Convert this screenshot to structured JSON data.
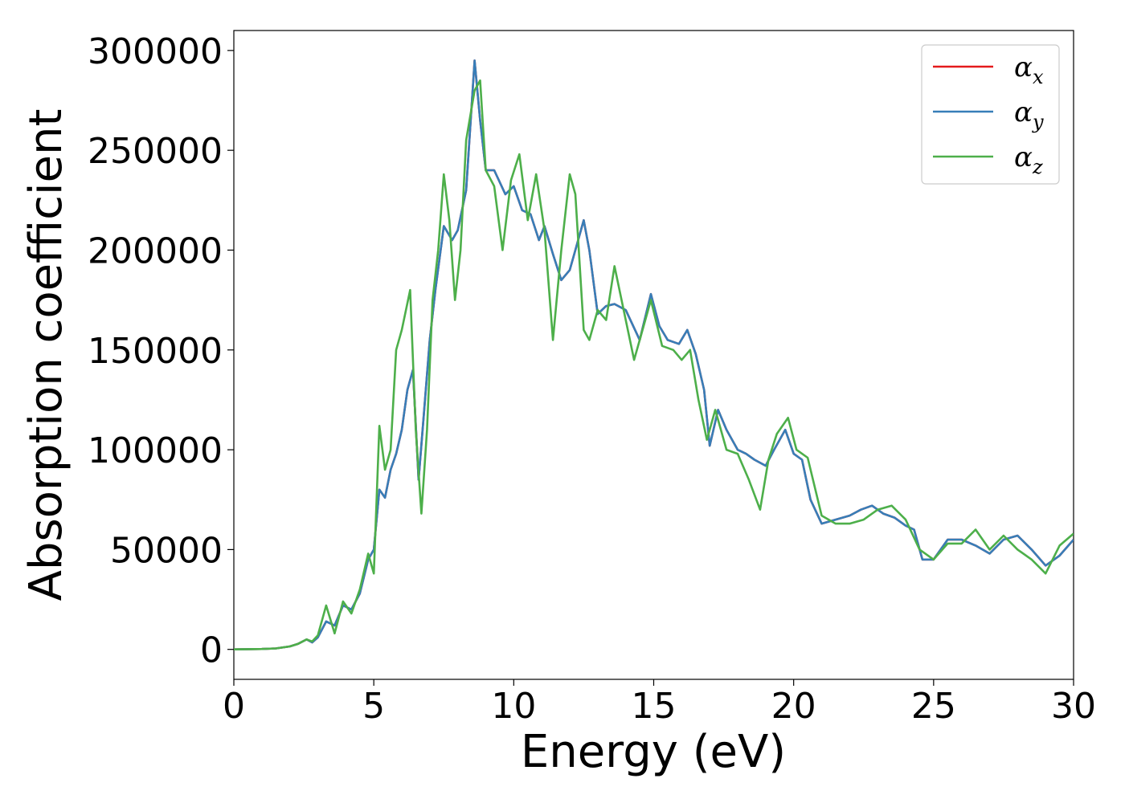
{
  "chart_data": {
    "type": "line",
    "title": "",
    "xlabel": "Energy (eV)",
    "ylabel": "Absorption coefficient",
    "xlim": [
      0,
      30
    ],
    "ylim": [
      -15000,
      310000
    ],
    "xticks": [
      0,
      5,
      10,
      15,
      20,
      25,
      30
    ],
    "yticks": [
      0,
      50000,
      100000,
      150000,
      200000,
      250000,
      300000
    ],
    "grid": false,
    "legend_position": "top-right",
    "series": [
      {
        "name": "αx",
        "symbol": "α",
        "subscript": "x",
        "color": "#e41a1c",
        "x": [
          0,
          1,
          1.5,
          2,
          2.3,
          2.6,
          2.8,
          3,
          3.3,
          3.6,
          3.9,
          4.2,
          4.5,
          4.8,
          5,
          5.2,
          5.4,
          5.6,
          5.8,
          6,
          6.2,
          6.4,
          6.6,
          6.8,
          7,
          7.2,
          7.5,
          7.8,
          8,
          8.3,
          8.6,
          8.8,
          9,
          9.3,
          9.7,
          10,
          10.3,
          10.6,
          10.9,
          11.1,
          11.4,
          11.7,
          12,
          12.2,
          12.5,
          12.7,
          13,
          13.3,
          13.6,
          14,
          14.5,
          14.9,
          15.2,
          15.5,
          15.9,
          16.2,
          16.5,
          16.8,
          17,
          17.3,
          17.6,
          18,
          18.3,
          18.6,
          19,
          19.3,
          19.7,
          20,
          20.3,
          20.6,
          21,
          21.5,
          22,
          22.4,
          22.8,
          23.2,
          23.6,
          24,
          24.3,
          24.6,
          25,
          25.5,
          26,
          26.5,
          27,
          27.5,
          28,
          28.5,
          29,
          29.5,
          30
        ],
        "y": [
          0,
          200,
          500,
          1500,
          2800,
          5000,
          3500,
          6000,
          14000,
          12000,
          22000,
          20000,
          28000,
          45000,
          50000,
          80000,
          76000,
          90000,
          98000,
          110000,
          130000,
          140000,
          85000,
          120000,
          155000,
          180000,
          212000,
          205000,
          210000,
          230000,
          295000,
          265000,
          240000,
          240000,
          228000,
          232000,
          220000,
          218000,
          205000,
          212000,
          198000,
          185000,
          190000,
          200000,
          215000,
          200000,
          168000,
          172000,
          173000,
          170000,
          155000,
          178000,
          162000,
          155000,
          153000,
          160000,
          148000,
          130000,
          102000,
          120000,
          110000,
          100000,
          98000,
          95000,
          92000,
          100000,
          110000,
          98000,
          95000,
          75000,
          63000,
          65000,
          67000,
          70000,
          72000,
          68000,
          66000,
          62000,
          60000,
          45000,
          45000,
          55000,
          55000,
          52000,
          48000,
          55000,
          57000,
          50000,
          42000,
          47000,
          55000
        ]
      },
      {
        "name": "αy",
        "symbol": "α",
        "subscript": "y",
        "color": "#377eb8",
        "x": [
          0,
          1,
          1.5,
          2,
          2.3,
          2.6,
          2.8,
          3,
          3.3,
          3.6,
          3.9,
          4.2,
          4.5,
          4.8,
          5,
          5.2,
          5.4,
          5.6,
          5.8,
          6,
          6.2,
          6.4,
          6.6,
          6.8,
          7,
          7.2,
          7.5,
          7.8,
          8,
          8.3,
          8.6,
          8.8,
          9,
          9.3,
          9.7,
          10,
          10.3,
          10.6,
          10.9,
          11.1,
          11.4,
          11.7,
          12,
          12.2,
          12.5,
          12.7,
          13,
          13.3,
          13.6,
          14,
          14.5,
          14.9,
          15.2,
          15.5,
          15.9,
          16.2,
          16.5,
          16.8,
          17,
          17.3,
          17.6,
          18,
          18.3,
          18.6,
          19,
          19.3,
          19.7,
          20,
          20.3,
          20.6,
          21,
          21.5,
          22,
          22.4,
          22.8,
          23.2,
          23.6,
          24,
          24.3,
          24.6,
          25,
          25.5,
          26,
          26.5,
          27,
          27.5,
          28,
          28.5,
          29,
          29.5,
          30
        ],
        "y": [
          0,
          200,
          500,
          1500,
          2800,
          5000,
          3500,
          6000,
          14000,
          12000,
          22000,
          20000,
          28000,
          45000,
          50000,
          80000,
          76000,
          90000,
          98000,
          110000,
          130000,
          140000,
          85000,
          120000,
          155000,
          180000,
          212000,
          205000,
          210000,
          230000,
          295000,
          265000,
          240000,
          240000,
          228000,
          232000,
          220000,
          218000,
          205000,
          212000,
          198000,
          185000,
          190000,
          200000,
          215000,
          200000,
          168000,
          172000,
          173000,
          170000,
          155000,
          178000,
          162000,
          155000,
          153000,
          160000,
          148000,
          130000,
          102000,
          120000,
          110000,
          100000,
          98000,
          95000,
          92000,
          100000,
          110000,
          98000,
          95000,
          75000,
          63000,
          65000,
          67000,
          70000,
          72000,
          68000,
          66000,
          62000,
          60000,
          45000,
          45000,
          55000,
          55000,
          52000,
          48000,
          55000,
          57000,
          50000,
          42000,
          47000,
          55000
        ]
      },
      {
        "name": "αz",
        "symbol": "α",
        "subscript": "z",
        "color": "#4daf4a",
        "x": [
          0,
          1,
          1.5,
          2,
          2.3,
          2.6,
          2.8,
          3,
          3.3,
          3.6,
          3.9,
          4.2,
          4.5,
          4.8,
          5,
          5.2,
          5.4,
          5.6,
          5.8,
          6,
          6.3,
          6.5,
          6.7,
          6.9,
          7.1,
          7.3,
          7.5,
          7.7,
          7.9,
          8.1,
          8.3,
          8.6,
          8.8,
          9,
          9.3,
          9.6,
          9.9,
          10.2,
          10.5,
          10.8,
          11.1,
          11.4,
          11.7,
          12,
          12.2,
          12.5,
          12.7,
          13,
          13.3,
          13.6,
          14,
          14.3,
          14.6,
          14.9,
          15.3,
          15.7,
          16,
          16.3,
          16.6,
          16.9,
          17.2,
          17.6,
          18,
          18.4,
          18.8,
          19.1,
          19.4,
          19.8,
          20.1,
          20.5,
          21,
          21.5,
          22,
          22.5,
          23,
          23.5,
          24,
          24.5,
          25,
          25.5,
          26,
          26.5,
          27,
          27.5,
          28,
          28.5,
          29,
          29.5,
          30
        ],
        "y": [
          0,
          200,
          500,
          1500,
          2800,
          5000,
          4000,
          7000,
          22000,
          8000,
          24000,
          18000,
          30000,
          48000,
          38000,
          112000,
          90000,
          100000,
          150000,
          160000,
          180000,
          110000,
          68000,
          110000,
          175000,
          200000,
          238000,
          215000,
          175000,
          200000,
          255000,
          280000,
          285000,
          240000,
          232000,
          200000,
          235000,
          248000,
          215000,
          238000,
          210000,
          155000,
          200000,
          238000,
          228000,
          160000,
          155000,
          170000,
          165000,
          192000,
          165000,
          145000,
          160000,
          175000,
          152000,
          150000,
          145000,
          150000,
          125000,
          105000,
          120000,
          100000,
          98000,
          85000,
          70000,
          95000,
          108000,
          116000,
          100000,
          96000,
          67000,
          63000,
          63000,
          65000,
          70000,
          72000,
          65000,
          50000,
          45000,
          53000,
          53000,
          60000,
          50000,
          57000,
          50000,
          45000,
          38000,
          52000,
          58000
        ]
      }
    ]
  }
}
